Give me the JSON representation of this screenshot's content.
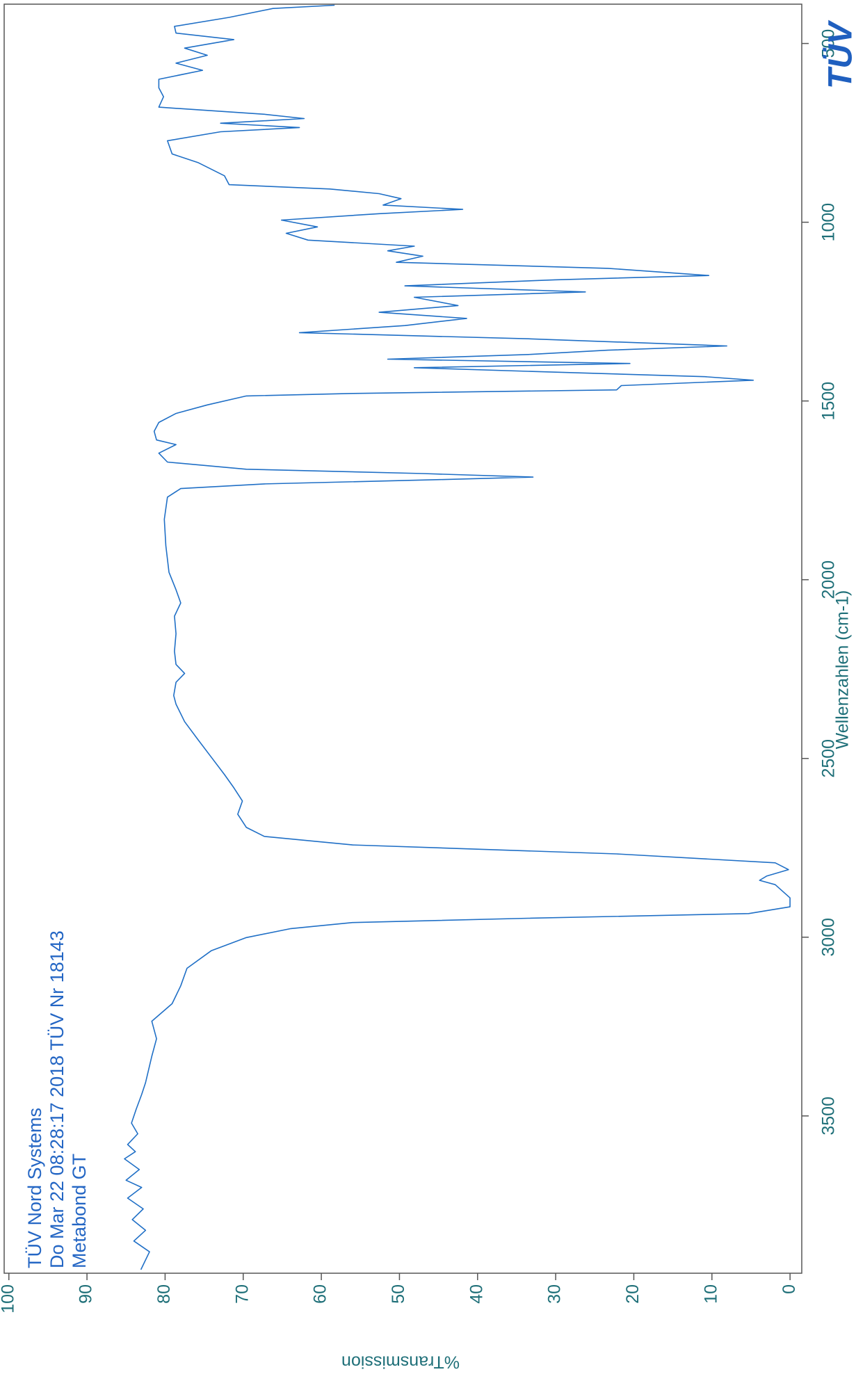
{
  "chart_data": {
    "type": "line",
    "annotations": [
      "TÜV Nord Systems",
      "Do Mar 22 08:28:17 2018 TÜV Nr 18143",
      "Metabond GT"
    ],
    "logo": "TÜV",
    "xlabel": "Wellenzahlen (cm-1)",
    "ylabel": "%Transmission",
    "x": [
      3930,
      3880,
      3850,
      3820,
      3790,
      3760,
      3730,
      3700,
      3680,
      3650,
      3620,
      3600,
      3580,
      3550,
      3520,
      3481,
      3440,
      3407,
      3333,
      3284,
      3235,
      3186,
      3136,
      3087,
      3038,
      3001,
      2976,
      2959,
      2947,
      2934,
      2915,
      2890,
      2853,
      2841,
      2829,
      2811,
      2792,
      2767,
      2742,
      2718,
      2693,
      2656,
      2619,
      2582,
      2545,
      2496,
      2447,
      2397,
      2348,
      2324,
      2287,
      2262,
      2237,
      2200,
      2151,
      2102,
      2065,
      2028,
      1979,
      1905,
      1831,
      1769,
      1745,
      1732,
      1720,
      1713,
      1703,
      1691,
      1671,
      1646,
      1622,
      1609,
      1585,
      1560,
      1535,
      1511,
      1486,
      1479,
      1469,
      1457,
      1442,
      1432,
      1417,
      1407,
      1395,
      1383,
      1370,
      1358,
      1346,
      1326,
      1309,
      1289,
      1269,
      1252,
      1233,
      1210,
      1195,
      1178,
      1161,
      1149,
      1129,
      1112,
      1095,
      1080,
      1067,
      1050,
      1031,
      1013,
      994,
      976,
      964,
      952,
      934,
      920,
      907,
      895,
      870,
      833,
      809,
      772,
      747,
      735,
      723,
      710,
      698,
      678,
      649,
      624,
      600,
      575,
      555,
      533,
      513,
      489,
      471,
      452,
      427,
      402,
      393
    ],
    "series": [
      {
        "color": "#1f6fc6",
        "values": [
          83.1,
          82.0,
          84.0,
          82.5,
          84.2,
          82.8,
          84.8,
          83.0,
          85.0,
          83.3,
          85.2,
          83.8,
          84.8,
          83.5,
          84.3,
          83.7,
          83.0,
          82.5,
          81.7,
          81.1,
          81.7,
          79.1,
          78.0,
          77.2,
          74.1,
          69.6,
          63.9,
          56.0,
          33.5,
          5.3,
          0,
          0,
          1.9,
          3.9,
          3.0,
          0.2,
          1.9,
          22.2,
          56.0,
          67.3,
          69.6,
          70.7,
          70.1,
          71.2,
          72.4,
          74.1,
          75.8,
          77.5,
          78.6,
          78.9,
          78.6,
          77.5,
          78.6,
          78.8,
          78.6,
          78.8,
          78.0,
          78.6,
          79.5,
          79.9,
          80.1,
          79.7,
          78.0,
          67.3,
          44.8,
          32.9,
          47.0,
          69.6,
          79.7,
          80.8,
          78.6,
          81.1,
          81.4,
          80.8,
          78.6,
          74.6,
          69.6,
          56.0,
          22.2,
          21.6,
          4.7,
          10.9,
          33.5,
          48.1,
          20.5,
          51.5,
          33.5,
          23.3,
          8.1,
          33.5,
          62.8,
          49.3,
          41.4,
          52.6,
          42.5,
          48.1,
          26.2,
          49.3,
          30.1,
          10.4,
          23.3,
          50.4,
          47.0,
          51.5,
          48.1,
          61.7,
          64.5,
          60.5,
          65.1,
          52.6,
          41.9,
          52.1,
          49.8,
          52.6,
          58.9,
          71.8,
          72.4,
          75.8,
          79.1,
          79.7,
          72.9,
          62.8,
          72.9,
          62.2,
          67.3,
          80.8,
          80.2,
          80.8,
          80.8,
          75.2,
          78.6,
          74.6,
          77.5,
          71.2,
          78.6,
          78.8,
          71.8,
          66.2,
          58.3
        ]
      }
    ],
    "xlim": [
      3940,
      390
    ],
    "ylim": [
      -1.5,
      100.6
    ],
    "xticks": [
      3500,
      3000,
      2500,
      2000,
      1500,
      1000,
      500
    ],
    "yticks": [
      0,
      10,
      20,
      30,
      40,
      50,
      60,
      70,
      80,
      90,
      100
    ]
  }
}
